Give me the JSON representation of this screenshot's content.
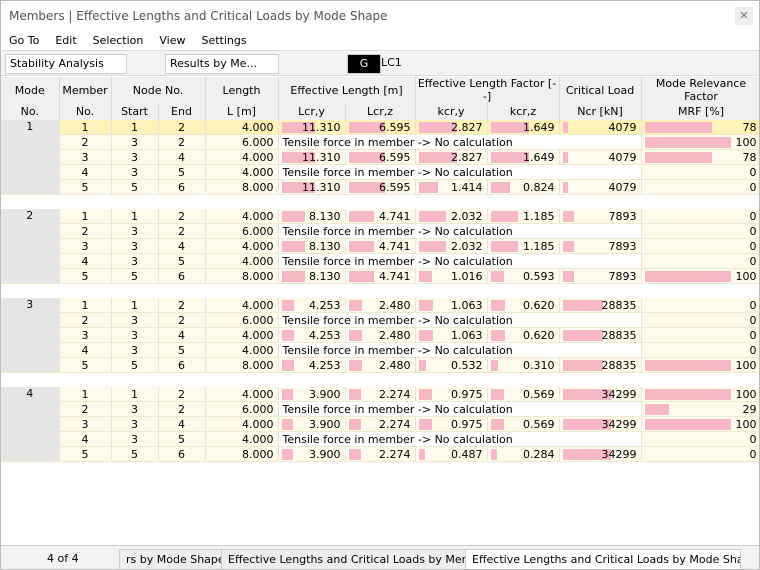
{
  "window": {
    "title": "Members | Effective Lengths and Critical Loads by Mode Shape"
  },
  "menu": [
    "Go To",
    "Edit",
    "Selection",
    "View",
    "Settings"
  ],
  "toolbar": {
    "analysis": "Stability Analysis",
    "results": "Results by Me...",
    "load_type": "G",
    "load_case": "LC1"
  },
  "table": {
    "headers": {
      "top": [
        "Mode",
        "Member",
        "Node No.",
        "Length",
        "Effective Length [m]",
        "Effective Length Factor [--]",
        "Critical Load",
        "Mode Relevance Factor"
      ],
      "sub": [
        "No.",
        "No.",
        "Start",
        "End",
        "L [m]",
        "Lcr,y",
        "Lcr,z",
        "kcr,y",
        "kcr,z",
        "Ncr [kN]",
        "MRF [%]"
      ]
    },
    "modes": [
      {
        "mode": "1",
        "rows": [
          [
            "1",
            "1",
            "2",
            "4.000",
            "11.310",
            "6.595",
            "2.827",
            "1.649",
            "4079",
            "78"
          ],
          [
            "2",
            "3",
            "2",
            "6.000",
            "Tensile force in member -> No calculation",
            "100"
          ],
          [
            "3",
            "3",
            "4",
            "4.000",
            "11.310",
            "6.595",
            "2.827",
            "1.649",
            "4079",
            "78"
          ],
          [
            "4",
            "3",
            "5",
            "4.000",
            "Tensile force in member -> No calculation",
            "0"
          ],
          [
            "5",
            "5",
            "6",
            "8.000",
            "11.310",
            "6.595",
            "1.414",
            "0.824",
            "4079",
            "0"
          ]
        ]
      },
      {
        "mode": "2",
        "rows": [
          [
            "1",
            "1",
            "2",
            "4.000",
            "8.130",
            "4.741",
            "2.032",
            "1.185",
            "7893",
            "0"
          ],
          [
            "2",
            "3",
            "2",
            "6.000",
            "Tensile force in member -> No calculation",
            "0"
          ],
          [
            "3",
            "3",
            "4",
            "4.000",
            "8.130",
            "4.741",
            "2.032",
            "1.185",
            "7893",
            "0"
          ],
          [
            "4",
            "3",
            "5",
            "4.000",
            "Tensile force in member -> No calculation",
            "0"
          ],
          [
            "5",
            "5",
            "6",
            "8.000",
            "8.130",
            "4.741",
            "1.016",
            "0.593",
            "7893",
            "100"
          ]
        ]
      },
      {
        "mode": "3",
        "rows": [
          [
            "1",
            "1",
            "2",
            "4.000",
            "4.253",
            "2.480",
            "1.063",
            "0.620",
            "28835",
            "0"
          ],
          [
            "2",
            "3",
            "2",
            "6.000",
            "Tensile force in member -> No calculation",
            "0"
          ],
          [
            "3",
            "3",
            "4",
            "4.000",
            "4.253",
            "2.480",
            "1.063",
            "0.620",
            "28835",
            "0"
          ],
          [
            "4",
            "3",
            "5",
            "4.000",
            "Tensile force in member -> No calculation",
            "0"
          ],
          [
            "5",
            "5",
            "6",
            "8.000",
            "4.253",
            "2.480",
            "0.532",
            "0.310",
            "28835",
            "100"
          ]
        ]
      },
      {
        "mode": "4",
        "rows": [
          [
            "1",
            "1",
            "2",
            "4.000",
            "3.900",
            "2.274",
            "0.975",
            "0.569",
            "34299",
            "100"
          ],
          [
            "2",
            "3",
            "2",
            "6.000",
            "Tensile force in member -> No calculation",
            "29"
          ],
          [
            "3",
            "3",
            "4",
            "4.000",
            "3.900",
            "2.274",
            "0.975",
            "0.569",
            "34299",
            "100"
          ],
          [
            "4",
            "3",
            "5",
            "4.000",
            "Tensile force in member -> No calculation",
            "0"
          ],
          [
            "5",
            "5",
            "6",
            "8.000",
            "3.900",
            "2.274",
            "0.487",
            "0.284",
            "34299",
            "0"
          ]
        ]
      }
    ]
  },
  "footer": {
    "page": "4 of 4",
    "tabs": [
      "rs by Mode Shape",
      "Effective Lengths and Critical Loads by Member",
      "Effective Lengths and Critical Loads by Mode Shape"
    ]
  }
}
